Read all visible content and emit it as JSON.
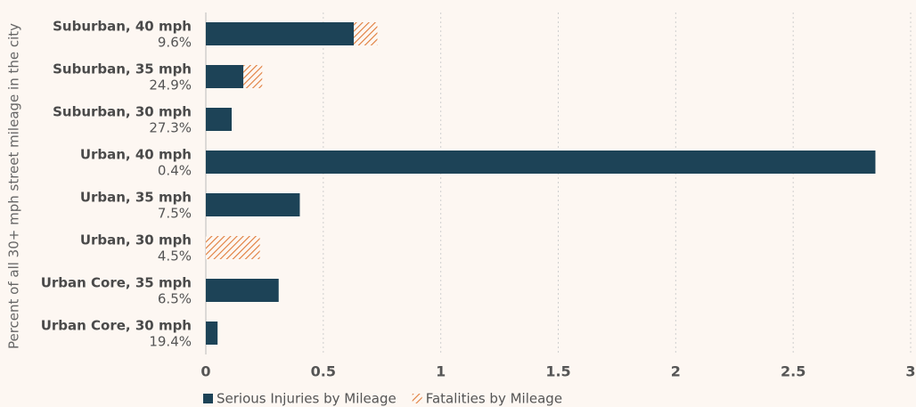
{
  "chart_data": {
    "type": "stacked-bar-horizontal",
    "y_axis_label": "Percent of all 30+ mph street mileage in the city",
    "categories": [
      "Suburban, 40 mph",
      "Suburban, 35 mph",
      "Suburban, 30 mph",
      "Urban, 40 mph",
      "Urban, 35 mph",
      "Urban, 30 mph",
      "Urban Core, 35 mph",
      "Urban Core, 30 mph"
    ],
    "category_sublabels": [
      "9.6%",
      "24.9%",
      "27.3%",
      "0.4%",
      "7.5%",
      "4.5%",
      "6.5%",
      "19.4%"
    ],
    "series": [
      {
        "name": "Serious Injuries by Mileage",
        "color": "#1d4357",
        "values": [
          0.63,
          0.16,
          0.11,
          2.85,
          0.4,
          0,
          0.31,
          0.05
        ]
      },
      {
        "name": "Fatalities by Mileage",
        "color": "#e07b39",
        "hatch": true,
        "values": [
          0.1,
          0.08,
          0,
          0,
          0,
          0.23,
          0,
          0
        ]
      }
    ],
    "xlim": [
      0,
      3
    ],
    "xticks": [
      0,
      0.5,
      1,
      1.5,
      2,
      2.5,
      3
    ],
    "grid": true,
    "legend": "bottom"
  }
}
